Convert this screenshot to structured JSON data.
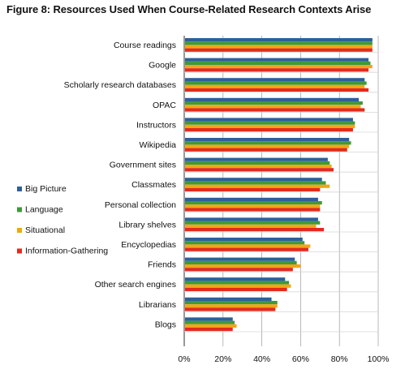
{
  "title": "Figure 8: Resources Used When Course-Related Research Contexts Arise",
  "chart_data": {
    "type": "bar",
    "orientation": "horizontal",
    "title": "Figure 8: Resources Used When Course-Related Research Contexts Arise",
    "xlabel": "",
    "ylabel": "",
    "xlim": [
      0,
      100
    ],
    "x_ticks": [
      "0%",
      "20%",
      "40%",
      "60%",
      "80%",
      "100%"
    ],
    "grid": "vertical",
    "legend_position": "left",
    "categories": [
      "Course readings",
      "Google",
      "Scholarly research databases",
      "OPAC",
      "Instructors",
      "Wikipedia",
      "Government sites",
      "Classmates",
      "Personal collection",
      "Library shelves",
      "Encyclopedias",
      "Friends",
      "Other search engines",
      "Librarians",
      "Blogs"
    ],
    "series": [
      {
        "name": "Big Picture",
        "color": "#2e5f9a",
        "values": [
          97,
          95,
          93,
          90,
          87,
          85,
          74,
          71,
          69,
          69,
          61,
          57,
          52,
          45,
          25
        ]
      },
      {
        "name": "Language",
        "color": "#3d9a3a",
        "values": [
          97,
          96,
          94,
          92,
          88,
          86,
          75,
          73,
          71,
          70,
          62,
          58,
          54,
          48,
          26
        ]
      },
      {
        "name": "Situational",
        "color": "#f2a518",
        "values": [
          97,
          97,
          93,
          91,
          88,
          85,
          76,
          75,
          70,
          68,
          65,
          60,
          55,
          48,
          27
        ]
      },
      {
        "name": "Information-Gathering",
        "color": "#e22b20",
        "values": [
          97,
          95,
          95,
          93,
          87,
          84,
          77,
          70,
          70,
          72,
          64,
          56,
          53,
          47,
          25
        ]
      }
    ]
  }
}
